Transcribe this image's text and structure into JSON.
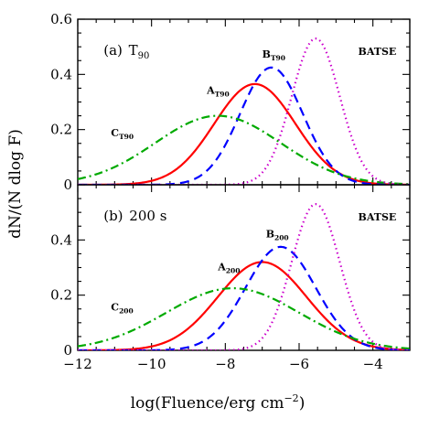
{
  "chart_data": {
    "type": "line",
    "xlabel": "log(Fluence/erg cm",
    "xlabel_sup": "−2",
    "xlabel_tail": ")",
    "ylabel": "dN/(N dlog F)",
    "xlim": [
      -12,
      -3
    ],
    "x_ticks": [
      -12,
      -10,
      -8,
      -6,
      -4
    ],
    "x_tick_labels": [
      "−12",
      "−10",
      "−8",
      "−6",
      "−4"
    ],
    "grid": false,
    "panels": [
      {
        "label": "(a)",
        "label_main": "T",
        "label_sub": "90",
        "ylim": [
          0,
          0.6
        ],
        "y_ticks": [
          0,
          0.2,
          0.4,
          0.6
        ],
        "y_tick_labels": [
          "0",
          "0.2",
          "0.4",
          "0.6"
        ],
        "series": [
          {
            "name": "A",
            "sub": "T90",
            "color": "#ff0000",
            "dash": "solid",
            "mu": -7.2,
            "sigma": 1.1,
            "peak": 0.365,
            "label_pos": [
              -8.5,
              0.33
            ]
          },
          {
            "name": "B",
            "sub": "T90",
            "color": "#0000ff",
            "dash": "dashed",
            "mu": -6.75,
            "sigma": 0.85,
            "peak": 0.425,
            "label_pos": [
              -7.0,
              0.46
            ]
          },
          {
            "name": "C",
            "sub": "T90",
            "color": "#00aa00",
            "dash": "dashdot",
            "mu": -8.2,
            "sigma": 1.7,
            "peak": 0.25,
            "label_pos": [
              -11.1,
              0.175
            ]
          },
          {
            "name": "BATSE",
            "sub": "",
            "color": "#cc00cc",
            "dash": "dotted",
            "mu": -5.55,
            "sigma": 0.65,
            "peak": 0.53,
            "label_pos": [
              -4.4,
              0.47
            ]
          }
        ]
      },
      {
        "label": "(b)",
        "label_main": "200 s",
        "label_sub": "",
        "ylim": [
          0,
          0.6
        ],
        "y_ticks": [
          0,
          0.2,
          0.4
        ],
        "y_tick_labels": [
          "0",
          "0.2",
          "0.4"
        ],
        "series": [
          {
            "name": "A",
            "sub": "200",
            "color": "#ff0000",
            "dash": "solid",
            "mu": -7.0,
            "sigma": 1.2,
            "peak": 0.32,
            "label_pos": [
              -8.2,
              0.29
            ]
          },
          {
            "name": "B",
            "sub": "200",
            "color": "#0000ff",
            "dash": "dashed",
            "mu": -6.5,
            "sigma": 0.95,
            "peak": 0.375,
            "label_pos": [
              -6.9,
              0.41
            ]
          },
          {
            "name": "C",
            "sub": "200",
            "color": "#00aa00",
            "dash": "dashdot",
            "mu": -7.8,
            "sigma": 1.8,
            "peak": 0.225,
            "label_pos": [
              -11.1,
              0.145
            ]
          },
          {
            "name": "BATSE",
            "sub": "",
            "color": "#cc00cc",
            "dash": "dotted",
            "mu": -5.55,
            "sigma": 0.65,
            "peak": 0.53,
            "label_pos": [
              -4.4,
              0.47
            ]
          }
        ]
      }
    ]
  }
}
